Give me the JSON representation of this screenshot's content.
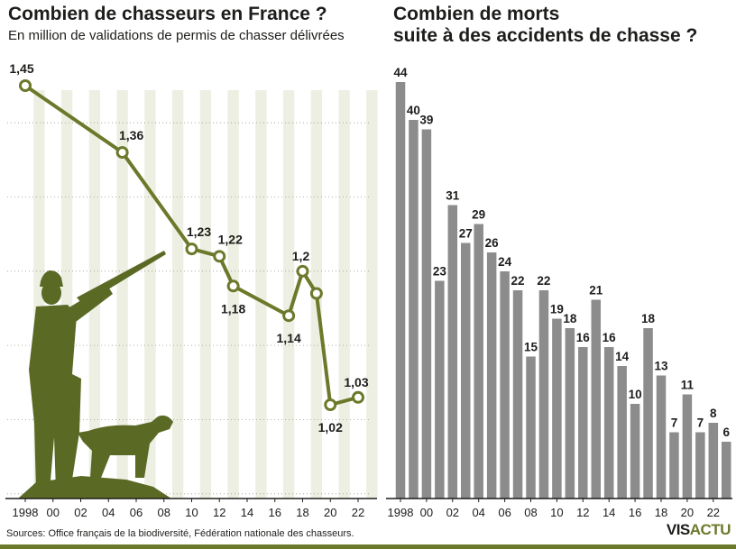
{
  "left_panel": {
    "title": "Combien de chasseurs en France ?",
    "subtitle": "En million de validations de permis de chasser délivrées"
  },
  "right_panel": {
    "title_line1": "Combien de morts",
    "title_line2": "suite à des accidents de chasse ?"
  },
  "footer": {
    "sources": "Sources: Office français de la biodiversité, Fédération nationale des chasseurs.",
    "brand_prefix": "VIS",
    "brand_suffix": "ACTU"
  },
  "colors": {
    "line": "#6b7a2a",
    "bar": "#8c8c8c",
    "silhouette": "#5a6a25",
    "stripe": "#eeefe3"
  },
  "chart_data": [
    {
      "type": "line",
      "title": "Combien de chasseurs en France ?",
      "subtitle": "En million de validations de permis de chasser délivrées",
      "x": [
        1998,
        2005,
        2010,
        2012,
        2013,
        2017,
        2018,
        2019,
        2020,
        2022
      ],
      "series": [
        {
          "values": [
            1.45,
            1.36,
            1.23,
            1.22,
            1.18,
            1.14,
            1.2,
            1.17,
            1.02,
            1.03
          ],
          "labels": [
            "1,45",
            "1,36",
            "1,23",
            "1,22",
            "1,18",
            "1,14",
            "1,2",
            "",
            "1,02",
            "1,03"
          ]
        }
      ],
      "x_ticks": [
        "1998",
        "00",
        "02",
        "04",
        "06",
        "08",
        "10",
        "12",
        "14",
        "16",
        "18",
        "20",
        "22"
      ],
      "xlim": [
        1998,
        2023
      ],
      "ylim": [
        0.9,
        1.5
      ],
      "grid": "dotted horizontal",
      "decoration": "hunter-and-dog-silhouette-icon"
    },
    {
      "type": "bar",
      "title": "Combien de morts suite à des accidents de chasse ?",
      "categories": [
        1998,
        1999,
        2000,
        2001,
        2002,
        2003,
        2004,
        2005,
        2006,
        2007,
        2008,
        2009,
        2010,
        2011,
        2012,
        2013,
        2014,
        2015,
        2016,
        2017,
        2018,
        2019,
        2020,
        2021,
        2022,
        2023
      ],
      "values": [
        44,
        40,
        39,
        23,
        31,
        27,
        29,
        26,
        24,
        22,
        15,
        22,
        19,
        18,
        16,
        21,
        16,
        14,
        10,
        18,
        13,
        7,
        11,
        7,
        8,
        6
      ],
      "x_ticks": [
        "1998",
        "00",
        "02",
        "04",
        "06",
        "08",
        "10",
        "12",
        "14",
        "16",
        "18",
        "20",
        "22"
      ],
      "ylim": [
        0,
        46
      ]
    }
  ]
}
